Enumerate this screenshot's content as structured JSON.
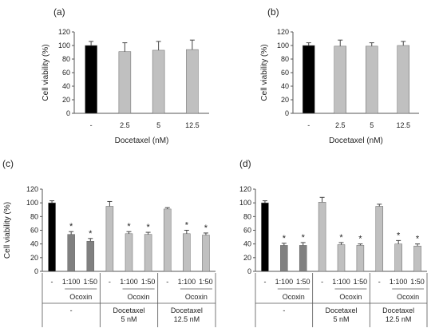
{
  "colors": {
    "black": "#000000",
    "light_gray": "#c0c0c0",
    "dark_gray": "#808080",
    "axis": "#555555"
  },
  "chart_data": [
    {
      "panel": "(a)",
      "type": "bar",
      "categories": [
        "-",
        "2.5",
        "5",
        "12.5"
      ],
      "values": [
        100,
        91,
        93,
        94
      ],
      "errors": [
        6,
        13,
        13,
        14
      ],
      "colors": [
        "black",
        "light_gray",
        "light_gray",
        "light_gray"
      ],
      "xlabel": "Docetaxel (nM)",
      "ylabel": "Cell viability (%)",
      "ylim": [
        0,
        120
      ],
      "yticks": [
        0,
        20,
        40,
        60,
        80,
        100,
        120
      ]
    },
    {
      "panel": "(b)",
      "type": "bar",
      "categories": [
        "-",
        "2.5",
        "5",
        "12.5"
      ],
      "values": [
        100,
        99,
        99,
        100
      ],
      "errors": [
        4,
        9,
        5,
        6
      ],
      "colors": [
        "black",
        "light_gray",
        "light_gray",
        "light_gray"
      ],
      "xlabel": "Docetaxel (nM)",
      "ylabel": "Cell viability (%)",
      "ylim": [
        0,
        120
      ],
      "yticks": [
        0,
        20,
        40,
        60,
        80,
        100,
        120
      ]
    },
    {
      "panel": "(c)",
      "type": "bar",
      "categories": [
        "-",
        "1:100",
        "1:50",
        "-",
        "1:100",
        "1:50",
        "-",
        "1:100",
        "1:50"
      ],
      "values": [
        100,
        54,
        44,
        95,
        55,
        54,
        91,
        55,
        53
      ],
      "errors": [
        3,
        4,
        4,
        7,
        3,
        3,
        2,
        5,
        3
      ],
      "colors": [
        "black",
        "dark_gray",
        "dark_gray",
        "light_gray",
        "light_gray",
        "light_gray",
        "light_gray",
        "light_gray",
        "light_gray"
      ],
      "significant": [
        false,
        true,
        true,
        false,
        true,
        true,
        false,
        true,
        true
      ],
      "groups": [
        {
          "ocoxin": "Ocoxin",
          "docetaxel": "-",
          "docetaxel2": ""
        },
        {
          "ocoxin": "Ocoxin",
          "docetaxel": "Docetaxel",
          "docetaxel2": "5 nM"
        },
        {
          "ocoxin": "Ocoxin",
          "docetaxel": "Docetaxel",
          "docetaxel2": "12.5 nM"
        }
      ],
      "ylabel": "Cell viability (%)",
      "ylim": [
        0,
        120
      ],
      "yticks": [
        0,
        20,
        40,
        60,
        80,
        100,
        120
      ],
      "significance_marker": "*"
    },
    {
      "panel": "(d)",
      "type": "bar",
      "categories": [
        "-",
        "1:100",
        "1:50",
        "-",
        "1:100",
        "1:50",
        "-",
        "1:100",
        "1:50"
      ],
      "values": [
        100,
        38,
        38,
        101,
        39,
        38,
        95,
        40,
        37
      ],
      "errors": [
        3,
        3,
        4,
        7,
        3,
        2,
        3,
        5,
        3
      ],
      "colors": [
        "black",
        "dark_gray",
        "dark_gray",
        "light_gray",
        "light_gray",
        "light_gray",
        "light_gray",
        "light_gray",
        "light_gray"
      ],
      "significant": [
        false,
        true,
        true,
        false,
        true,
        true,
        false,
        true,
        true
      ],
      "groups": [
        {
          "ocoxin": "Ocoxin",
          "docetaxel": "-",
          "docetaxel2": ""
        },
        {
          "ocoxin": "Ocoxin",
          "docetaxel": "Docetaxel",
          "docetaxel2": "5 nM"
        },
        {
          "ocoxin": "Ocoxin",
          "docetaxel": "Docetaxel",
          "docetaxel2": "12.5 nM"
        }
      ],
      "ylabel": "",
      "ylim": [
        0,
        120
      ],
      "yticks": [
        0,
        20,
        40,
        60,
        80,
        100,
        120
      ],
      "significance_marker": "*"
    }
  ]
}
